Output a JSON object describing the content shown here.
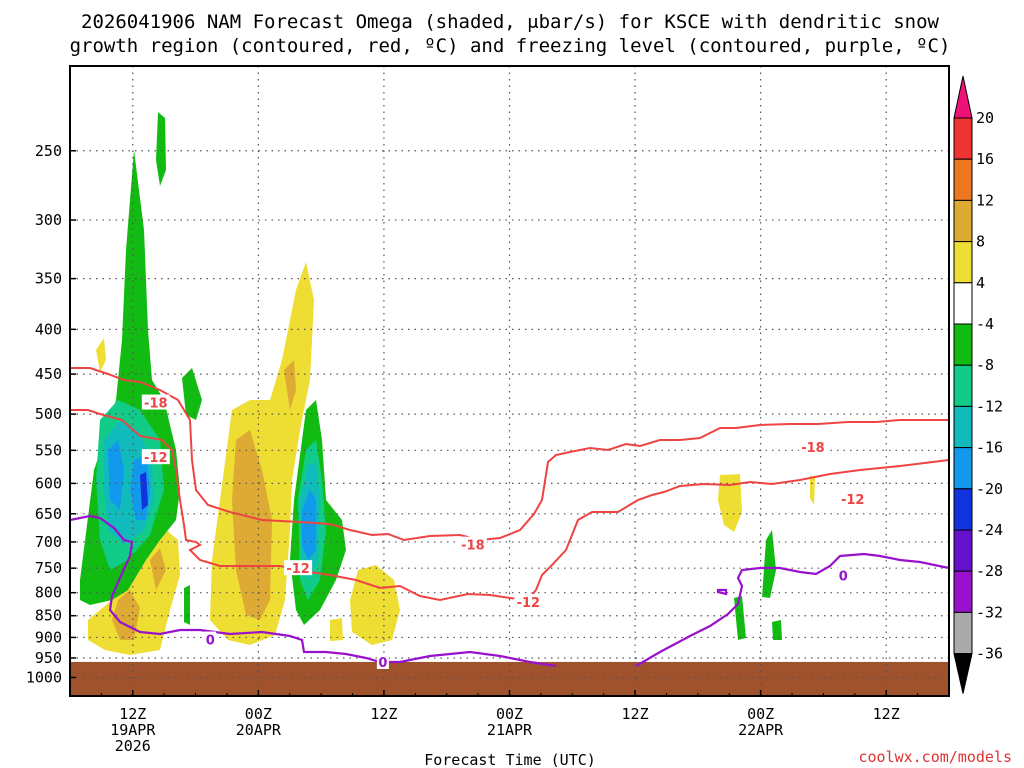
{
  "chart_data": {
    "type": "contour",
    "title_line1": "2026041906 NAM Forecast Omega (shaded, μbar/s) for KSCE with dendritic snow",
    "title_line2": "growth region (contoured, red, ºC) and freezing level (contoured, purple, ºC)",
    "xlabel": "Forecast Time (UTC)",
    "credit": "coolwx.com/models",
    "y_axis": {
      "scale": "log-pressure",
      "ylim": [
        1050,
        200
      ],
      "ticks": [
        250,
        300,
        350,
        400,
        450,
        500,
        550,
        600,
        650,
        700,
        750,
        800,
        850,
        900,
        950,
        1000
      ]
    },
    "x_axis": {
      "xlim": [
        "2026-04-19T06Z",
        "2026-04-22T18Z"
      ],
      "ticks": [
        {
          "t": 6,
          "label1": "12Z",
          "label2": "19APR",
          "label3": "2026"
        },
        {
          "t": 18,
          "label1": "00Z",
          "label2": "20APR",
          "label3": ""
        },
        {
          "t": 30,
          "label1": "12Z",
          "label2": "",
          "label3": ""
        },
        {
          "t": 42,
          "label1": "00Z",
          "label2": "21APR",
          "label3": ""
        },
        {
          "t": 54,
          "label1": "12Z",
          "label2": "",
          "label3": ""
        },
        {
          "t": 66,
          "label1": "00Z",
          "label2": "22APR",
          "label3": ""
        },
        {
          "t": 78,
          "label1": "12Z",
          "label2": "",
          "label3": ""
        }
      ]
    },
    "grid": true,
    "colorbar": {
      "levels": [
        20,
        16,
        12,
        8,
        4,
        -4,
        -8,
        -12,
        -16,
        -20,
        -24,
        -28,
        -32,
        -36
      ],
      "colors": [
        "#ee1177",
        "#ee3333",
        "#ee7722",
        "#ddaa33",
        "#eedd33",
        "#ffffff",
        "#11bb11",
        "#11cc88",
        "#11bbbb",
        "#1199ee",
        "#1133dd",
        "#6611cc",
        "#9911cc",
        "#aaaaaa",
        "#000000"
      ]
    },
    "ground_color": "#a0522d",
    "contour_labels": [
      {
        "value": "-18",
        "t": 8.2,
        "p": 485,
        "color": "#ee4444"
      },
      {
        "value": "-12",
        "t": 8.2,
        "p": 560,
        "color": "#ee4444"
      },
      {
        "value": "-18",
        "t": 38.5,
        "p": 705,
        "color": "#ee4444"
      },
      {
        "value": "-12",
        "t": 21.8,
        "p": 750,
        "color": "#ee4444"
      },
      {
        "value": "-12",
        "t": 43.8,
        "p": 820,
        "color": "#ee4444"
      },
      {
        "value": "-18",
        "t": 71.0,
        "p": 545,
        "color": "#ee4444"
      },
      {
        "value": "-12",
        "t": 74.8,
        "p": 625,
        "color": "#ee4444"
      },
      {
        "value": "0",
        "t": 13.4,
        "p": 905,
        "color": "#9911cc"
      },
      {
        "value": "0",
        "t": 29.9,
        "p": 960,
        "color": "#9911cc"
      },
      {
        "value": "0",
        "t": 73.9,
        "p": 765,
        "color": "#9911cc"
      }
    ]
  }
}
